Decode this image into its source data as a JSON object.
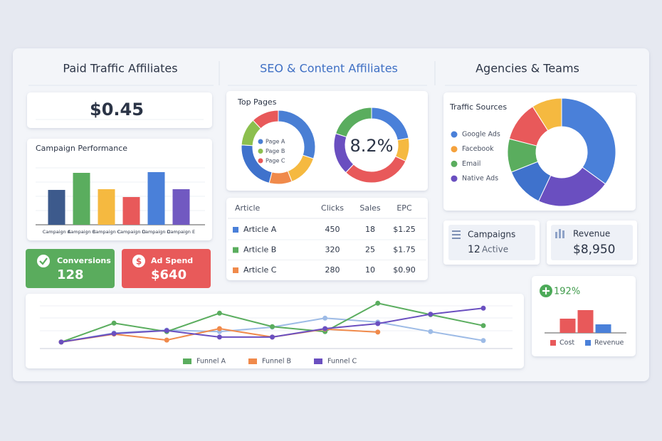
{
  "columns": [
    {
      "title": "Paid Traffic Affiliates"
    },
    {
      "title": "SEO & Content Affiliates"
    },
    {
      "title": "Agencies & Teams"
    }
  ],
  "epc_card": {
    "value": "$0.45"
  },
  "conversions": {
    "label": "Conversions",
    "value": "128"
  },
  "ad_spend": {
    "label": "Ad Spend",
    "value": "$640"
  },
  "table": {
    "header": [
      "Article",
      "Clicks",
      "Sales",
      "EPC"
    ],
    "rows": [
      [
        "Article A",
        "450",
        "18",
        "$1.25"
      ],
      [
        "Article B",
        "320",
        "25",
        "$1.75"
      ],
      [
        "Article C",
        "280",
        "10",
        "$0.90"
      ]
    ],
    "colors": [
      "#4a80d9",
      "#5aad5e",
      "#f08a4b"
    ]
  },
  "campaigns": {
    "label": "Campaigns",
    "count": "12",
    "status": "Active"
  },
  "revenue_card": {
    "label": "Revenue",
    "value": "$8,950"
  },
  "chart_data": [
    {
      "type": "bar",
      "title": "Campaign Performance",
      "categories": [
        "Campaign A",
        "Campaign B",
        "Campaign C",
        "Campaign D",
        "Campaign D",
        "Campaign E"
      ],
      "values": [
        49,
        73,
        50,
        39,
        74,
        50
      ],
      "colors": [
        "#3d5a8c",
        "#5aad5e",
        "#f5b940",
        "#e8595a",
        "#4a80d9",
        "#7159c1"
      ],
      "ylim": [
        0,
        80
      ]
    },
    {
      "type": "donut",
      "title": "Top Pages",
      "values": [
        30,
        14,
        10,
        22,
        12,
        12
      ],
      "colors": [
        "#4a7fd4",
        "#f5b940",
        "#f08a4b",
        "#3f72cc",
        "#8cbf4e",
        "#e8595a"
      ],
      "legend": [
        {
          "name": "Page A",
          "color": "#4a7fd4"
        },
        {
          "name": "Page B",
          "color": "#8cbf4e"
        },
        {
          "name": "Page C",
          "color": "#e8595a"
        }
      ]
    },
    {
      "type": "donut",
      "center_label": "8.2%",
      "values": [
        22,
        10,
        30,
        18,
        20
      ],
      "colors": [
        "#4a80d9",
        "#f5b940",
        "#e8595a",
        "#6a4fc0",
        "#5aad5e"
      ]
    },
    {
      "type": "donut",
      "title": "Traffic Sources",
      "values": [
        35,
        22,
        12,
        10,
        12,
        9
      ],
      "colors": [
        "#4a80d9",
        "#6a4fc0",
        "#3f72cc",
        "#5aad5e",
        "#e8595a",
        "#f5b940"
      ],
      "legend": [
        {
          "name": "Google Ads",
          "color": "#4a80d9"
        },
        {
          "name": "Facebook",
          "color": "#f5a23d"
        },
        {
          "name": "Email",
          "color": "#5aad5e"
        },
        {
          "name": "Native Ads",
          "color": "#6a4fc0"
        }
      ]
    },
    {
      "type": "line",
      "ylim": [
        0,
        100
      ],
      "series": [
        {
          "name": "Funnel A",
          "color": "#5aad5e",
          "values": [
            13,
            51,
            34,
            71,
            44,
            34,
            91,
            68,
            46
          ]
        },
        {
          "name": "Funnel B",
          "color": "#f08a4b",
          "values": [
            13,
            29,
            17,
            40,
            23,
            39,
            33,
            null,
            null
          ]
        },
        {
          "name": "Funnel C",
          "color": "#6a4fc0",
          "values": [
            13,
            30,
            36,
            23,
            23,
            40,
            50,
            69,
            81
          ]
        },
        {
          "color": "#9dbbe6",
          "values": [
            13,
            31,
            37,
            34,
            43,
            61,
            53,
            34,
            16
          ]
        }
      ]
    },
    {
      "type": "bar",
      "annotation": "192%",
      "values": [
        20,
        32,
        12
      ],
      "colors": [
        "#e8595a",
        "#e8595a",
        "#4a80d9"
      ],
      "ylim": [
        0,
        40
      ],
      "legend": [
        {
          "name": "Cost",
          "color": "#e8595a"
        },
        {
          "name": "Revenue",
          "color": "#4a80d9"
        }
      ]
    }
  ]
}
